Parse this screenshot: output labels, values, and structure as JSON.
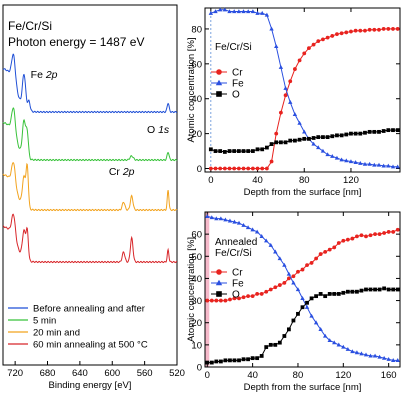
{
  "colors": {
    "blue": "#1f4fd6",
    "green": "#38c23a",
    "orange": "#f2a31e",
    "red": "#d8262a",
    "cr_red": "#e8231f",
    "fe_blue": "#2a4fe0",
    "o_black": "#000000",
    "pink": "#f08aa6"
  },
  "chart_data": [
    {
      "type": "line",
      "title": "Fe/Cr/Si",
      "annotation": "Photon energy = 1487 eV",
      "xlabel": "Binding energy [eV]",
      "ylabel": "",
      "xlim": [
        735,
        520
      ],
      "x_ticks": [
        720,
        680,
        640,
        600,
        560,
        520
      ],
      "peak_labels": [
        {
          "label": "Fe 2p",
          "x": 707
        },
        {
          "label": "O 1s",
          "x": 531
        },
        {
          "label": "Cr 2p",
          "x": 576
        }
      ],
      "series": [
        {
          "name": "Before annealing and after",
          "color": "#1f4fd6"
        },
        {
          "name": "5 min",
          "color": "#38c23a"
        },
        {
          "name": "20 min and",
          "color": "#f2a31e"
        },
        {
          "name": "60 min annealing at 500 °C",
          "color": "#d8262a"
        }
      ]
    },
    {
      "type": "line",
      "title": "Fe/Cr/Si",
      "xlabel": "Depth from the surface [nm]",
      "ylabel": "Atomic concentration [%]",
      "xlim": [
        -5,
        162
      ],
      "ylim": [
        -2,
        92
      ],
      "x_ticks": [
        0,
        40,
        80,
        120
      ],
      "y_ticks": [
        0,
        20,
        40,
        60,
        80
      ],
      "x": [
        0,
        4,
        8,
        12,
        16,
        20,
        24,
        28,
        32,
        36,
        40,
        44,
        48,
        52,
        56,
        60,
        64,
        68,
        72,
        76,
        80,
        84,
        88,
        92,
        96,
        100,
        104,
        108,
        112,
        116,
        120,
        124,
        128,
        132,
        136,
        140,
        144,
        148,
        152,
        156,
        160
      ],
      "series": [
        {
          "name": "Cr",
          "color": "#e8231f",
          "marker": "circle",
          "values": [
            0,
            0,
            0,
            0,
            0,
            0,
            0,
            0,
            0,
            0,
            0,
            0,
            0,
            4,
            20,
            32,
            42,
            50,
            57,
            62,
            66,
            69,
            71,
            73,
            74,
            75,
            76,
            77,
            77.5,
            78,
            78.5,
            79,
            79,
            79,
            79.5,
            79.5,
            79.5,
            80,
            80,
            80,
            80
          ]
        },
        {
          "name": "Fe",
          "color": "#2a4fe0",
          "marker": "triangle",
          "values": [
            89,
            90,
            91,
            91,
            90,
            90,
            90,
            90,
            90,
            90,
            89,
            89,
            88,
            80,
            70,
            58,
            46,
            38,
            31,
            26,
            21,
            17,
            14,
            12,
            10,
            8,
            7,
            6,
            5,
            4.5,
            4,
            3.5,
            3,
            2.5,
            2.5,
            2,
            2,
            1.5,
            1.5,
            1,
            1
          ]
        },
        {
          "name": "O",
          "color": "#000000",
          "marker": "square",
          "values": [
            11,
            10,
            10,
            9.5,
            10,
            10,
            10,
            10,
            10,
            10,
            11,
            11,
            12,
            14,
            15,
            15,
            15,
            16,
            16,
            16.5,
            17,
            17,
            17.5,
            18,
            18,
            18,
            18.5,
            19,
            19,
            19.5,
            20,
            20,
            20,
            20.5,
            21,
            21,
            21,
            21.5,
            22,
            22,
            22
          ]
        }
      ]
    },
    {
      "type": "line",
      "title": "Annealed Fe/Cr/Si",
      "xlabel": "Depth from the surface [nm]",
      "ylabel": "Atomic concentration [%]",
      "xlim": [
        -2,
        170
      ],
      "ylim": [
        0,
        70
      ],
      "x_ticks": [
        0,
        40,
        80,
        120,
        160
      ],
      "y_ticks": [
        0,
        10,
        20,
        30,
        40,
        50,
        60
      ],
      "x": [
        0,
        4,
        8,
        12,
        16,
        20,
        24,
        28,
        32,
        36,
        40,
        44,
        48,
        52,
        56,
        60,
        64,
        68,
        72,
        76,
        80,
        84,
        88,
        92,
        96,
        100,
        104,
        108,
        112,
        116,
        120,
        124,
        128,
        132,
        136,
        140,
        144,
        148,
        152,
        156,
        160,
        164,
        168
      ],
      "series": [
        {
          "name": "Cr",
          "color": "#e8231f",
          "marker": "circle",
          "values": [
            30,
            30,
            30,
            30,
            30,
            30.5,
            31,
            31,
            31.5,
            32,
            32,
            33,
            33,
            34,
            35,
            36,
            37,
            38,
            40,
            41,
            43,
            44,
            46,
            47,
            49,
            51,
            52,
            53,
            54,
            56,
            57,
            57.5,
            58,
            59,
            59.5,
            59,
            59.5,
            60,
            60,
            60.5,
            61,
            61,
            62
          ]
        },
        {
          "name": "Fe",
          "color": "#2a4fe0",
          "marker": "triangle",
          "values": [
            68,
            67.5,
            67,
            67,
            66.5,
            66,
            65.5,
            65,
            64,
            63,
            62,
            61,
            59,
            57,
            55,
            52,
            49,
            46,
            42,
            38,
            35,
            31,
            27,
            23,
            20,
            17,
            14,
            12,
            11,
            10,
            9,
            8,
            7,
            6.5,
            6,
            5.5,
            5,
            5,
            4.5,
            4,
            3.5,
            3,
            3
          ]
        },
        {
          "name": "O",
          "color": "#000000",
          "marker": "square",
          "values": [
            2,
            2,
            2.5,
            2.5,
            3,
            3,
            3,
            3,
            3.5,
            3.5,
            4,
            4,
            5,
            9,
            10,
            10,
            11,
            14,
            17,
            21,
            24,
            27,
            29,
            31,
            32,
            33,
            32,
            33,
            33,
            33,
            33.5,
            34,
            34,
            34,
            34.5,
            35,
            35,
            35,
            35,
            35.5,
            35,
            35,
            35
          ]
        }
      ]
    }
  ]
}
